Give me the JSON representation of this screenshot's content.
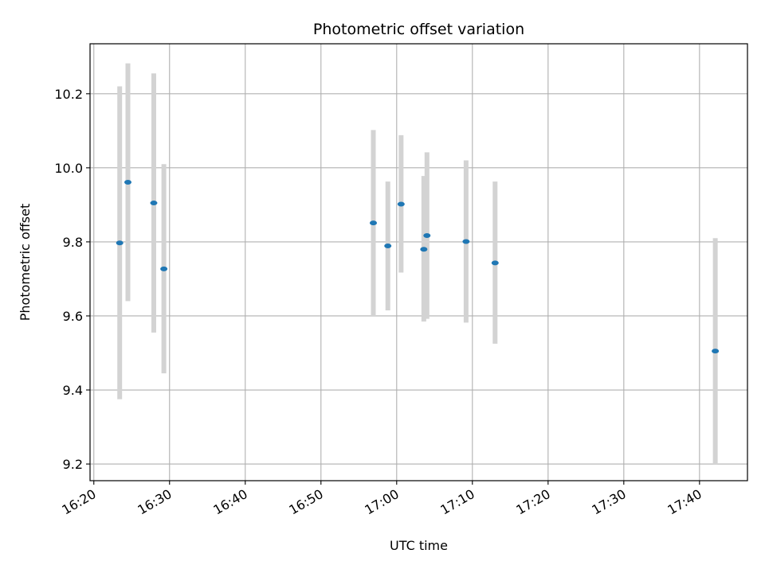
{
  "chart_data": {
    "type": "scatter",
    "title": "Photometric offset variation",
    "xlabel": "UTC time",
    "ylabel": "Photometric offset",
    "x_axis_type": "time",
    "xlim": [
      "16:19:30",
      "17:46:20"
    ],
    "ylim": [
      9.155,
      10.335
    ],
    "grid": true,
    "legend": "none",
    "x_ticks": [
      "16:20",
      "16:30",
      "16:40",
      "16:50",
      "17:00",
      "17:10",
      "17:20",
      "17:30",
      "17:40"
    ],
    "y_ticks": [
      "9.2",
      "9.4",
      "9.6",
      "9.8",
      "10.0",
      "10.2"
    ],
    "colors": {
      "points": "#1f77b4",
      "error_bars": "#d3d3d3",
      "grid": "#b0b0b0",
      "axes": "#000000"
    },
    "points": [
      {
        "x": "16:23:25",
        "y": 9.797,
        "y_low": 9.375,
        "y_high": 10.22
      },
      {
        "x": "16:24:30",
        "y": 9.961,
        "y_low": 9.64,
        "y_high": 10.282
      },
      {
        "x": "16:27:55",
        "y": 9.905,
        "y_low": 9.555,
        "y_high": 10.255
      },
      {
        "x": "16:29:15",
        "y": 9.727,
        "y_low": 9.445,
        "y_high": 10.01
      },
      {
        "x": "16:56:55",
        "y": 9.851,
        "y_low": 9.6,
        "y_high": 10.102
      },
      {
        "x": "16:58:50",
        "y": 9.789,
        "y_low": 9.615,
        "y_high": 9.963
      },
      {
        "x": "17:00:35",
        "y": 9.902,
        "y_low": 9.717,
        "y_high": 10.088
      },
      {
        "x": "17:03:35",
        "y": 9.78,
        "y_low": 9.585,
        "y_high": 9.978
      },
      {
        "x": "17:04:00",
        "y": 9.817,
        "y_low": 9.592,
        "y_high": 10.042
      },
      {
        "x": "17:09:10",
        "y": 9.801,
        "y_low": 9.582,
        "y_high": 10.02
      },
      {
        "x": "17:13:00",
        "y": 9.743,
        "y_low": 9.525,
        "y_high": 9.963
      },
      {
        "x": "17:42:05",
        "y": 9.505,
        "y_low": 9.2,
        "y_high": 9.81
      }
    ]
  }
}
